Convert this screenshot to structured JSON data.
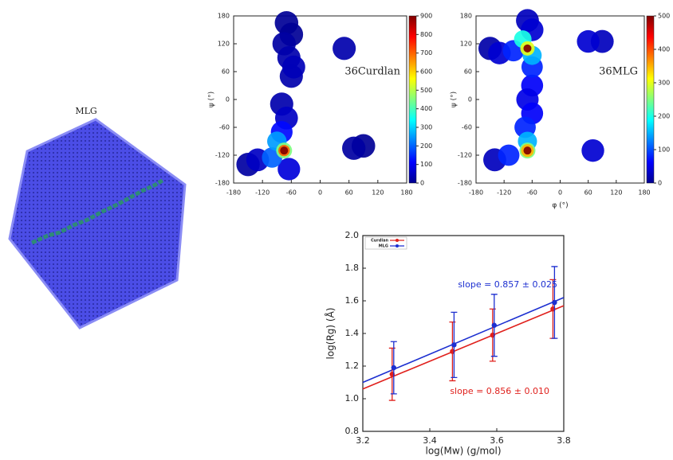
{
  "image_label": "MLG",
  "chart_data": [
    {
      "type": "density",
      "annotation": "36Curdlan",
      "ylabel": "ψ (°)",
      "xlim": [
        -180,
        180
      ],
      "xticks": [
        -180,
        -120,
        -60,
        0,
        60,
        120,
        180
      ],
      "ylim": [
        -180,
        180
      ],
      "yticks": [
        -180,
        -120,
        -60,
        0,
        60,
        120,
        180
      ],
      "clim": [
        0,
        900
      ],
      "cticks": [
        0,
        100,
        200,
        300,
        400,
        500,
        600,
        700,
        800,
        900
      ],
      "x": [
        -70,
        -60,
        -150,
        90,
        -75,
        -130,
        70,
        -65,
        -60,
        50,
        -55,
        -80,
        -70,
        -65,
        -80,
        -100,
        -90,
        -75,
        -75,
        -75
      ],
      "y": [
        165,
        140,
        -140,
        -100,
        120,
        -130,
        -105,
        90,
        50,
        110,
        70,
        -10,
        -40,
        -150,
        -70,
        -125,
        -90,
        -110,
        -110,
        -110
      ],
      "values": [
        20,
        20,
        30,
        20,
        30,
        60,
        30,
        40,
        40,
        40,
        50,
        40,
        60,
        80,
        120,
        200,
        250,
        450,
        700,
        900
      ]
    },
    {
      "type": "density",
      "annotation": "36MLG",
      "xlabel": "φ (°)",
      "ylabel": "ψ (°)",
      "xlim": [
        -180,
        180
      ],
      "xticks": [
        -180,
        -120,
        -60,
        0,
        60,
        120,
        180
      ],
      "ylim": [
        -180,
        180
      ],
      "yticks": [
        -180,
        -120,
        -60,
        0,
        60,
        120,
        180
      ],
      "clim": [
        0,
        500
      ],
      "cticks": [
        0,
        100,
        200,
        300,
        400,
        500
      ],
      "x": [
        -70,
        -60,
        -150,
        -130,
        -140,
        90,
        60,
        70,
        -60,
        -70,
        -60,
        -100,
        -60,
        -75,
        -110,
        -70,
        -60,
        -80,
        -70,
        -70,
        -70,
        -70,
        -70
      ],
      "y": [
        170,
        150,
        110,
        100,
        -130,
        125,
        125,
        -110,
        30,
        0,
        -30,
        105,
        70,
        -60,
        -120,
        -90,
        95,
        130,
        110,
        110,
        -110,
        -110,
        -110
      ],
      "values": [
        30,
        40,
        20,
        40,
        30,
        30,
        40,
        40,
        60,
        50,
        60,
        80,
        80,
        80,
        80,
        150,
        150,
        200,
        300,
        500,
        250,
        350,
        500
      ]
    },
    {
      "type": "errorbar",
      "xlabel": "log(Mw) (g/mol)",
      "ylabel": "log(Rg) (Å)",
      "xlim": [
        3.2,
        3.8
      ],
      "xticks": [
        3.2,
        3.4,
        3.6,
        3.8
      ],
      "ylim": [
        0.8,
        2.0
      ],
      "yticks": [
        0.8,
        {
          "value": 1.0,
          "label": "1.0"
        },
        1.2,
        1.4,
        1.6,
        1.8,
        {
          "value": 2.0,
          "label": "2.0"
        }
      ],
      "legend": "upper left",
      "x": [
        3.29,
        3.47,
        3.59,
        3.77
      ],
      "series": [
        {
          "name": "Curdlan",
          "color": "#e0201c",
          "values": [
            1.15,
            1.29,
            1.39,
            1.55
          ],
          "errors": [
            0.16,
            0.18,
            0.16,
            0.18
          ]
        },
        {
          "name": "MLG",
          "color": "#1c2fd0",
          "values": [
            1.19,
            1.33,
            1.45,
            1.59
          ],
          "errors": [
            0.16,
            0.2,
            0.19,
            0.22
          ]
        }
      ],
      "fits": [
        {
          "color": "#e0201c",
          "x": [
            3.2,
            3.8
          ],
          "values": [
            1.06,
            1.57
          ]
        },
        {
          "color": "#1c2fd0",
          "x": [
            3.2,
            3.8
          ],
          "values": [
            1.1,
            1.62
          ]
        }
      ],
      "annotations": [
        {
          "text": "slope = 0.857 ± 0.025",
          "color": "#1c2fd0"
        },
        {
          "text": "slope = 0.856 ± 0.010",
          "color": "#e0201c"
        }
      ]
    }
  ]
}
